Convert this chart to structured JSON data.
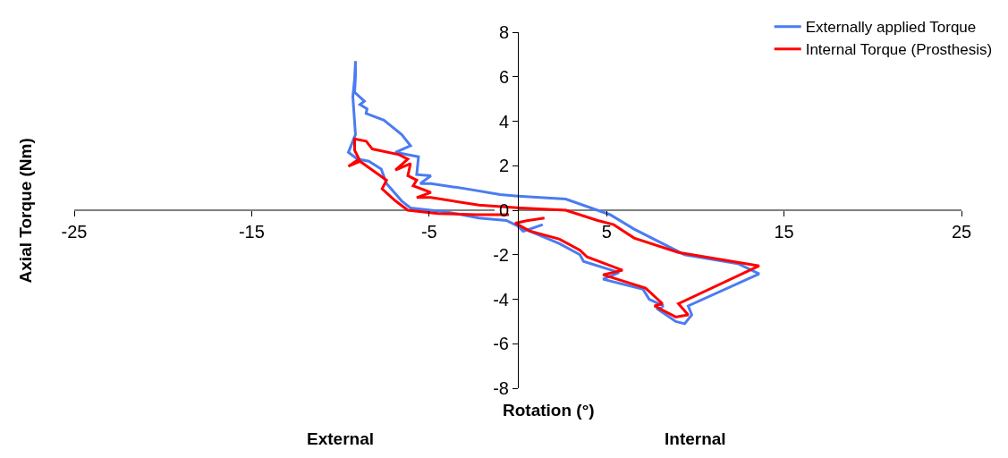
{
  "chart_data": {
    "type": "line",
    "xlabel": "Rotation (°)",
    "ylabel": "Axial Torque (Nm)",
    "annotations": [
      "External",
      "Internal"
    ],
    "xlim": [
      -25,
      25
    ],
    "xticks": [
      -25,
      -15,
      -5,
      5,
      15,
      25
    ],
    "ylim": [
      -8,
      8
    ],
    "yticks": [
      -8,
      -6,
      -4,
      -2,
      0,
      2,
      4,
      6,
      8
    ],
    "grid": false,
    "legend": "top right",
    "marker": "none",
    "line_style": "solid",
    "series": [
      {
        "name": "Externally applied Torque",
        "color": "#4a7cf2",
        "x": [
          1.4,
          0.3,
          0.0,
          2.35,
          3.5,
          3.7,
          5.7,
          4.8,
          7.05,
          7.4,
          8.2,
          7.9,
          8.9,
          9.4,
          9.8,
          9.6,
          13.6,
          12.4,
          9.4,
          6.55,
          5.2,
          2.7,
          0.0,
          -1.0,
          -2.9,
          -4.9,
          -5.5,
          -4.9,
          -5.7,
          -5.6,
          -6.9,
          -6.05,
          -6.55,
          -7.55,
          -8.55,
          -8.5,
          -8.9,
          -8.65,
          -9.2,
          -9.15,
          -9.15,
          -9.2,
          -9.3,
          -9.15,
          -9.55,
          -9.05,
          -8.4,
          -7.7,
          -7.4,
          -6.55,
          -6.05,
          -4.0,
          -2.2,
          -0.65,
          0.15
        ],
        "values": [
          -0.65,
          -0.95,
          -0.72,
          -1.5,
          -2.0,
          -2.3,
          -2.8,
          -3.1,
          -3.55,
          -4.0,
          -4.3,
          -4.45,
          -5.0,
          -5.1,
          -4.7,
          -4.3,
          -2.86,
          -2.4,
          -2.0,
          -0.85,
          -0.2,
          0.5,
          0.63,
          0.7,
          0.96,
          1.2,
          1.2,
          1.55,
          1.6,
          2.4,
          2.6,
          2.9,
          3.4,
          4.05,
          4.35,
          4.55,
          4.75,
          4.9,
          5.3,
          6.0,
          6.7,
          5.9,
          5.1,
          3.4,
          2.6,
          2.3,
          2.2,
          1.85,
          1.2,
          0.42,
          0.1,
          -0.08,
          -0.35,
          -0.46,
          -0.77
        ]
      },
      {
        "name": "Internal Torque (Prosthesis)",
        "color": "#ff0000",
        "x": [
          1.5,
          0.5,
          -0.15,
          0.65,
          2.35,
          3.5,
          3.9,
          5.9,
          4.8,
          7.2,
          8.15,
          7.7,
          8.9,
          9.6,
          9.05,
          13.6,
          9.05,
          6.55,
          5.4,
          4.5,
          2.7,
          0.15,
          -2.2,
          -4.9,
          -5.7,
          -4.9,
          -5.9,
          -5.7,
          -6.2,
          -6.05,
          -6.9,
          -6.2,
          -6.7,
          -8.2,
          -8.55,
          -9.2,
          -9.2,
          -8.95,
          -9.55,
          -8.9,
          -7.4,
          -7.65,
          -6.9,
          -6.2,
          -4.5,
          -2.35,
          -0.5
        ],
        "values": [
          -0.35,
          -0.47,
          -0.58,
          -0.93,
          -1.3,
          -1.8,
          -2.1,
          -2.7,
          -2.9,
          -3.5,
          -4.2,
          -4.3,
          -4.8,
          -4.7,
          -4.2,
          -2.5,
          -1.9,
          -1.25,
          -0.65,
          -0.46,
          0.0,
          0.1,
          0.23,
          0.57,
          0.57,
          0.8,
          1.1,
          1.35,
          1.55,
          2.1,
          1.8,
          2.3,
          2.5,
          2.75,
          3.1,
          3.2,
          2.7,
          2.3,
          1.97,
          2.2,
          1.35,
          0.96,
          0.42,
          0.0,
          -0.15,
          -0.2,
          -0.2
        ]
      }
    ]
  }
}
